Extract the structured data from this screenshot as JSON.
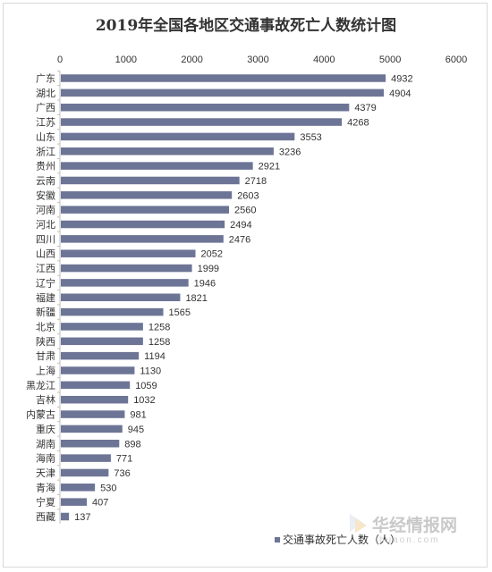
{
  "chart_data": {
    "type": "bar",
    "orientation": "horizontal",
    "title": "2019年全国各地区交通事故死亡人数统计图",
    "xlim": [
      0,
      6000
    ],
    "x_ticks": [
      0,
      1000,
      2000,
      3000,
      4000,
      5000,
      6000
    ],
    "x_axis_position": "top",
    "grid": false,
    "legend": {
      "position": "bottom-right"
    },
    "categories": [
      "广东",
      "湖北",
      "广西",
      "江苏",
      "山东",
      "浙江",
      "贵州",
      "云南",
      "安徽",
      "河南",
      "河北",
      "四川",
      "山西",
      "江西",
      "辽宁",
      "福建",
      "新疆",
      "北京",
      "陕西",
      "甘肃",
      "上海",
      "黑龙江",
      "吉林",
      "内蒙古",
      "重庆",
      "湖南",
      "海南",
      "天津",
      "青海",
      "宁夏",
      "西藏"
    ],
    "series": [
      {
        "name": "交通事故死亡人数（人）",
        "color": "#6d7596",
        "values": [
          4932,
          4904,
          4379,
          4268,
          3553,
          3236,
          2921,
          2718,
          2603,
          2560,
          2494,
          2476,
          2052,
          1999,
          1946,
          1821,
          1565,
          1258,
          1258,
          1194,
          1130,
          1059,
          1032,
          981,
          945,
          898,
          771,
          736,
          530,
          407,
          137
        ]
      }
    ]
  },
  "watermark": {
    "text": "华经情报网",
    "sub": "huaon.com",
    "icon": "huaon-logo-icon"
  }
}
